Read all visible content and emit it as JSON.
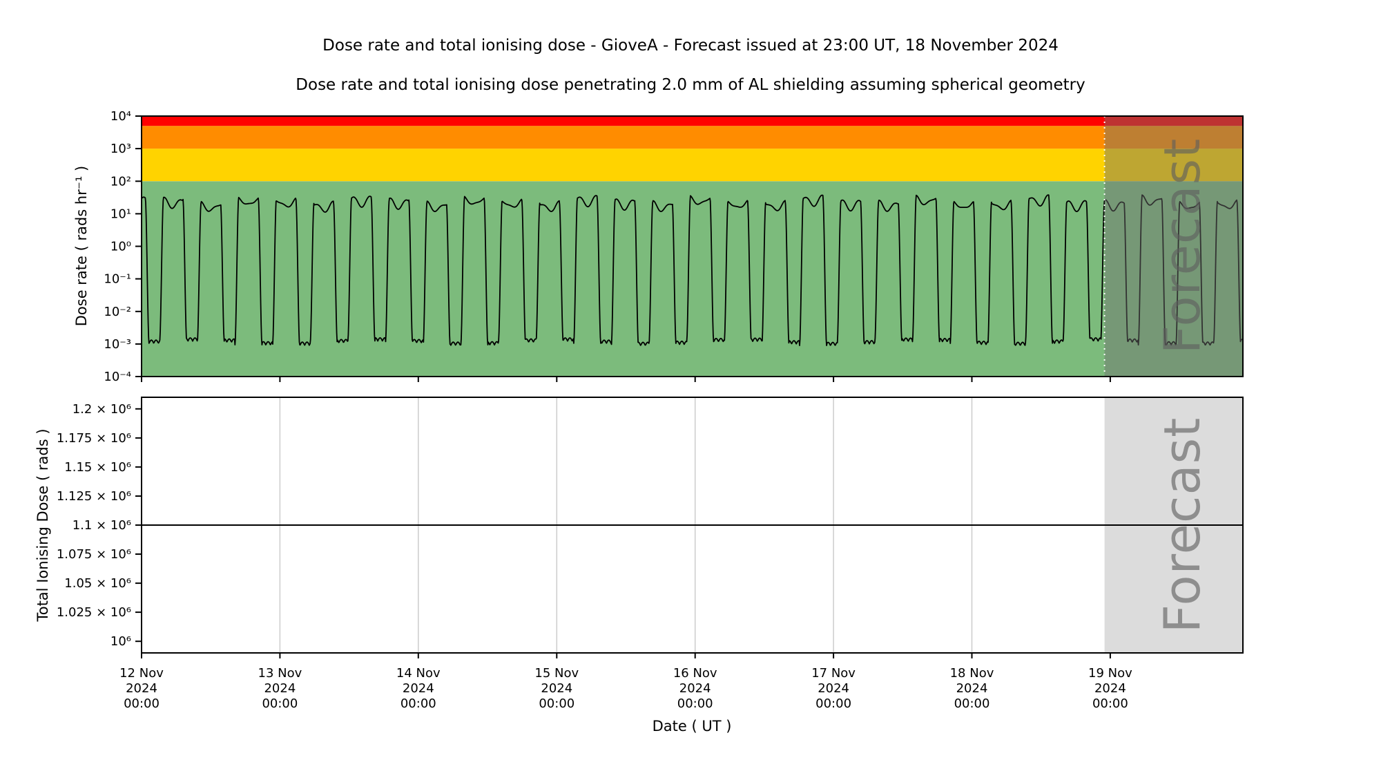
{
  "title": "Dose rate and total ionising dose - GioveA - Forecast issued at 23:00 UT, 18 November 2024",
  "subtitle": "Dose rate and total ionising dose penetrating 2.0 mm of AL shielding assuming spherical geometry",
  "xlabel": "Date ( UT )",
  "forecast": {
    "label": "Forecast",
    "issued_at": "23:00 UT, 18 November 2024",
    "start_time": "18 Nov 2024 23:00",
    "start_day": 6.9583
  },
  "x_axis": {
    "start": "12 Nov 2024 00:00",
    "end": "19 Nov 2024 23:00",
    "days_total": 7.9583,
    "ticks": [
      {
        "day": 0,
        "lines": [
          "12 Nov",
          "2024",
          "00:00"
        ]
      },
      {
        "day": 1,
        "lines": [
          "13 Nov",
          "2024",
          "00:00"
        ]
      },
      {
        "day": 2,
        "lines": [
          "14 Nov",
          "2024",
          "00:00"
        ]
      },
      {
        "day": 3,
        "lines": [
          "15 Nov",
          "2024",
          "00:00"
        ]
      },
      {
        "day": 4,
        "lines": [
          "16 Nov",
          "2024",
          "00:00"
        ]
      },
      {
        "day": 5,
        "lines": [
          "17 Nov",
          "2024",
          "00:00"
        ]
      },
      {
        "day": 6,
        "lines": [
          "18 Nov",
          "2024",
          "00:00"
        ]
      },
      {
        "day": 7,
        "lines": [
          "19 Nov",
          "2024",
          "00:00"
        ]
      }
    ]
  },
  "chart_data": [
    {
      "type": "line",
      "name": "dose_rate",
      "ylabel": "Dose rate ( rads hr⁻¹ )",
      "yscale": "log",
      "ylim": [
        0.0001,
        10000
      ],
      "yticks": [
        {
          "value": 10000,
          "label": "10⁴"
        },
        {
          "value": 1000,
          "label": "10³"
        },
        {
          "value": 100,
          "label": "10²"
        },
        {
          "value": 10,
          "label": "10¹"
        },
        {
          "value": 1,
          "label": "10⁰"
        },
        {
          "value": 0.1,
          "label": "10⁻¹"
        },
        {
          "value": 0.01,
          "label": "10⁻²"
        },
        {
          "value": 0.001,
          "label": "10⁻³"
        },
        {
          "value": 0.0001,
          "label": "10⁻⁴"
        }
      ],
      "bands": [
        {
          "name": "green",
          "from": 0.0001,
          "to": 100,
          "color": "#7CBB7C"
        },
        {
          "name": "yellow",
          "from": 100,
          "to": 1000,
          "color": "#FFD300"
        },
        {
          "name": "orange",
          "from": 1000,
          "to": 5000,
          "color": "#FF8C00"
        },
        {
          "name": "red",
          "from": 5000,
          "to": 10000,
          "color": "#FF0000"
        }
      ],
      "line_color": "#000000",
      "series": {
        "description": "Periodic orbital dose-rate modulation, ~3.7 peaks per day, oscillating between ~0.001 and ~26 rads/hr",
        "period_days": 0.272,
        "phase": 0.52,
        "log_peak": 1.42,
        "log_min": -2.98,
        "peak_rads_hr": 26,
        "min_rads_hr": 0.001
      }
    },
    {
      "type": "line",
      "name": "total_ionising_dose",
      "ylabel": "Total Ionising Dose ( rads )",
      "yscale": "linear",
      "ylim": [
        990000,
        1210000
      ],
      "yticks": [
        {
          "value": 1200000,
          "label": "1.2 × 10⁶"
        },
        {
          "value": 1175000,
          "label": "1.175 × 10⁶"
        },
        {
          "value": 1150000,
          "label": "1.15 × 10⁶"
        },
        {
          "value": 1125000,
          "label": "1.125 × 10⁶"
        },
        {
          "value": 1100000,
          "label": "1.1 × 10⁶"
        },
        {
          "value": 1075000,
          "label": "1.075 × 10⁶"
        },
        {
          "value": 1050000,
          "label": "1.05 × 10⁶"
        },
        {
          "value": 1025000,
          "label": "1.025 × 10⁶"
        },
        {
          "value": 1000000,
          "label": "10⁶"
        }
      ],
      "line_color": "#000000",
      "series": {
        "description": "Accumulated total ionising dose, approximately constant across the window",
        "value_rads": 1100000
      }
    }
  ]
}
